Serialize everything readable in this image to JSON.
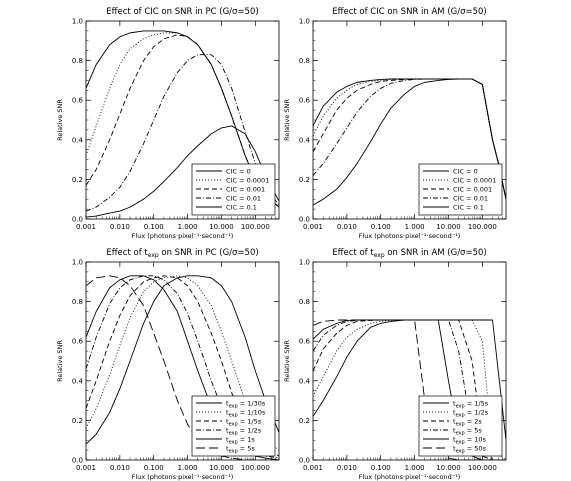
{
  "chart_data": [
    {
      "type": "line",
      "title": "Effect of CIC on SNR in PC (G/σ=50)",
      "xlabel": "Flux (photons·pixel⁻¹·second⁻¹)",
      "ylabel": "Relative SNR",
      "xscale": "log",
      "xlim": [
        0.001,
        500
      ],
      "ylim": [
        0,
        1.0
      ],
      "xticks": [
        "0.001",
        "0.010",
        "0.100",
        "1.000",
        "10.000",
        "100.000"
      ],
      "yticks": [
        "0.0",
        "0.2",
        "0.4",
        "0.6",
        "0.8",
        "1.0"
      ],
      "legend_position": "bottom-right",
      "legend": [
        {
          "label": "CIC = 0",
          "dash": "solid"
        },
        {
          "label": "CIC = 0.0001",
          "dash": "dot"
        },
        {
          "label": "CIC = 0.001",
          "dash": "dash"
        },
        {
          "label": "CIC = 0.01",
          "dash": "dashdot"
        },
        {
          "label": "CIC = 0.1",
          "dash": "solid"
        }
      ],
      "x": [
        0.001,
        0.002,
        0.005,
        0.01,
        0.02,
        0.05,
        0.1,
        0.2,
        0.5,
        1,
        2,
        5,
        10,
        20,
        50,
        100,
        200,
        500
      ],
      "series": [
        {
          "dash": "solid",
          "values": [
            0.66,
            0.78,
            0.88,
            0.92,
            0.94,
            0.95,
            0.95,
            0.95,
            0.94,
            0.92,
            0.88,
            0.78,
            0.66,
            0.52,
            0.32,
            0.2,
            0.12,
            0.06
          ]
        },
        {
          "dash": "dot",
          "values": [
            0.32,
            0.47,
            0.66,
            0.78,
            0.86,
            0.91,
            0.93,
            0.94,
            0.94,
            0.92,
            0.88,
            0.78,
            0.66,
            0.52,
            0.32,
            0.2,
            0.12,
            0.06
          ]
        },
        {
          "dash": "dash",
          "values": [
            0.17,
            0.25,
            0.4,
            0.53,
            0.66,
            0.8,
            0.87,
            0.91,
            0.93,
            0.92,
            0.88,
            0.78,
            0.66,
            0.52,
            0.32,
            0.2,
            0.12,
            0.06
          ]
        },
        {
          "dash": "dashdot",
          "values": [
            0.04,
            0.06,
            0.11,
            0.16,
            0.24,
            0.38,
            0.5,
            0.62,
            0.74,
            0.8,
            0.83,
            0.83,
            0.78,
            0.66,
            0.44,
            0.28,
            0.16,
            0.07
          ]
        },
        {
          "dash": "solid",
          "values": [
            0.01,
            0.015,
            0.03,
            0.04,
            0.06,
            0.1,
            0.14,
            0.19,
            0.26,
            0.32,
            0.37,
            0.43,
            0.46,
            0.47,
            0.43,
            0.34,
            0.22,
            0.09
          ]
        }
      ]
    },
    {
      "type": "line",
      "title": "Effect of CIC on SNR in AM (G/σ=50)",
      "xlabel": "Flux (photons·pixel⁻¹·second⁻¹)",
      "ylabel": "Relative SNR",
      "xscale": "log",
      "xlim": [
        0.001,
        500
      ],
      "ylim": [
        0,
        1.0
      ],
      "xticks": [
        "0.001",
        "0.010",
        "0.100",
        "1.000",
        "10.000",
        "100.000"
      ],
      "yticks": [
        "0.0",
        "0.2",
        "0.4",
        "0.6",
        "0.8",
        "1.0"
      ],
      "legend_position": "bottom-right",
      "legend": [
        {
          "label": "CIC = 0",
          "dash": "solid"
        },
        {
          "label": "CIC = 0.0001",
          "dash": "dot"
        },
        {
          "label": "CIC = 0.001",
          "dash": "dash"
        },
        {
          "label": "CIC = 0.01",
          "dash": "dashdot"
        },
        {
          "label": "CIC = 0.1",
          "dash": "solid"
        }
      ],
      "x": [
        0.001,
        0.002,
        0.005,
        0.01,
        0.02,
        0.05,
        0.1,
        0.2,
        0.5,
        1,
        2,
        5,
        10,
        20,
        50,
        100,
        200,
        300,
        500
      ],
      "series": [
        {
          "dash": "solid",
          "values": [
            0.47,
            0.57,
            0.64,
            0.67,
            0.69,
            0.7,
            0.705,
            0.707,
            0.707,
            0.707,
            0.707,
            0.707,
            0.707,
            0.707,
            0.707,
            0.68,
            0.4,
            0.28,
            0.1
          ]
        },
        {
          "dash": "dot",
          "values": [
            0.42,
            0.52,
            0.61,
            0.65,
            0.68,
            0.695,
            0.7,
            0.705,
            0.707,
            0.707,
            0.707,
            0.707,
            0.707,
            0.707,
            0.707,
            0.68,
            0.4,
            0.28,
            0.1
          ]
        },
        {
          "dash": "dash",
          "values": [
            0.34,
            0.43,
            0.55,
            0.61,
            0.65,
            0.68,
            0.695,
            0.7,
            0.705,
            0.707,
            0.707,
            0.707,
            0.707,
            0.707,
            0.707,
            0.68,
            0.4,
            0.28,
            0.1
          ]
        },
        {
          "dash": "dashdot",
          "values": [
            0.22,
            0.28,
            0.38,
            0.46,
            0.54,
            0.62,
            0.66,
            0.685,
            0.7,
            0.705,
            0.707,
            0.707,
            0.707,
            0.707,
            0.707,
            0.68,
            0.4,
            0.28,
            0.1
          ]
        },
        {
          "dash": "solid",
          "values": [
            0.07,
            0.1,
            0.15,
            0.21,
            0.28,
            0.39,
            0.48,
            0.56,
            0.63,
            0.67,
            0.69,
            0.7,
            0.705,
            0.707,
            0.707,
            0.68,
            0.4,
            0.28,
            0.1
          ]
        }
      ]
    },
    {
      "type": "line",
      "title": "Effect of t_exp on SNR in PC (G/σ=50)",
      "title_parts": {
        "before": "Effect of t",
        "sub": "exp",
        "after": " on SNR in PC (G/σ=50)"
      },
      "xlabel": "Flux (photons·pixel⁻¹·second⁻¹)",
      "ylabel": "Relative SNR",
      "xscale": "log",
      "xlim": [
        0.001,
        500
      ],
      "ylim": [
        0,
        1.0
      ],
      "xticks": [
        "0.001",
        "0.010",
        "0.100",
        "1.000",
        "10.000",
        "100.000"
      ],
      "yticks": [
        "0.0",
        "0.2",
        "0.4",
        "0.6",
        "0.8",
        "1.0"
      ],
      "legend_position": "bottom-right",
      "legend": [
        {
          "label": "= 1/30s",
          "dash": "solid"
        },
        {
          "label": "= 1/10s",
          "dash": "dot"
        },
        {
          "label": "= 1/5s",
          "dash": "dash"
        },
        {
          "label": "= 1/2s",
          "dash": "dashdot"
        },
        {
          "label": "= 1s",
          "dash": "solid"
        },
        {
          "label": "= 5s",
          "dash": "longdash"
        }
      ],
      "legend_prefix": "t",
      "legend_sub": "exp",
      "x": [
        0.001,
        0.002,
        0.005,
        0.01,
        0.02,
        0.05,
        0.1,
        0.2,
        0.5,
        1,
        2,
        5,
        10,
        20,
        50,
        100,
        200,
        500
      ],
      "series": [
        {
          "dash": "solid",
          "values": [
            0.08,
            0.13,
            0.24,
            0.36,
            0.5,
            0.69,
            0.8,
            0.88,
            0.92,
            0.93,
            0.93,
            0.92,
            0.88,
            0.8,
            0.62,
            0.45,
            0.3,
            0.14
          ]
        },
        {
          "dash": "dot",
          "values": [
            0.16,
            0.26,
            0.43,
            0.58,
            0.72,
            0.85,
            0.9,
            0.92,
            0.93,
            0.92,
            0.88,
            0.78,
            0.65,
            0.5,
            0.3,
            0.18,
            0.1,
            0.05
          ]
        },
        {
          "dash": "dash",
          "values": [
            0.26,
            0.4,
            0.6,
            0.73,
            0.83,
            0.9,
            0.92,
            0.93,
            0.92,
            0.88,
            0.8,
            0.64,
            0.5,
            0.34,
            0.18,
            0.1,
            0.06,
            0.02
          ]
        },
        {
          "dash": "dashdot",
          "values": [
            0.46,
            0.62,
            0.79,
            0.87,
            0.91,
            0.93,
            0.93,
            0.91,
            0.84,
            0.74,
            0.6,
            0.4,
            0.27,
            0.16,
            0.07,
            0.04,
            0.02,
            0.01
          ]
        },
        {
          "dash": "solid",
          "values": [
            0.62,
            0.75,
            0.87,
            0.91,
            0.93,
            0.93,
            0.91,
            0.86,
            0.75,
            0.6,
            0.45,
            0.27,
            0.16,
            0.09,
            0.04,
            0.02,
            0.01,
            0.0
          ]
        },
        {
          "dash": "longdash",
          "values": [
            0.88,
            0.92,
            0.93,
            0.92,
            0.88,
            0.78,
            0.64,
            0.5,
            0.3,
            0.18,
            0.1,
            0.04,
            0.02,
            0.01,
            0.0,
            0.0,
            0.0,
            0.0
          ]
        }
      ]
    },
    {
      "type": "line",
      "title": "Effect of t_exp on SNR in AM (G/σ=50)",
      "title_parts": {
        "before": "Effect of t",
        "sub": "exp",
        "after": " on SNR in AM (G/σ=50)"
      },
      "xlabel": "Flux (photons·pixel⁻¹·second⁻¹)",
      "ylabel": "Relative SNR",
      "xscale": "log",
      "xlim": [
        0.001,
        500
      ],
      "ylim": [
        0,
        1.0
      ],
      "xticks": [
        "0.001",
        "0.010",
        "0.100",
        "1.000",
        "10.000",
        "100.000"
      ],
      "yticks": [
        "0.0",
        "0.2",
        "0.4",
        "0.6",
        "0.8",
        "1.0"
      ],
      "legend_position": "bottom-right",
      "legend": [
        {
          "label": "= 1/5s",
          "dash": "solid"
        },
        {
          "label": "= 1/2s",
          "dash": "dot"
        },
        {
          "label": "= 2s",
          "dash": "dash"
        },
        {
          "label": "= 5s",
          "dash": "dashdot"
        },
        {
          "label": "= 10s",
          "dash": "solid"
        },
        {
          "label": "= 50s",
          "dash": "longdash"
        }
      ],
      "legend_prefix": "t",
      "legend_sub": "exp",
      "x": [
        0.001,
        0.002,
        0.005,
        0.01,
        0.02,
        0.05,
        0.1,
        0.2,
        0.5,
        1,
        2,
        5,
        10,
        20,
        50,
        100,
        200,
        500
      ],
      "series": [
        {
          "dash": "solid",
          "values": [
            0.22,
            0.3,
            0.42,
            0.52,
            0.6,
            0.67,
            0.69,
            0.7,
            0.707,
            0.707,
            0.707,
            0.707,
            0.707,
            0.707,
            0.707,
            0.707,
            0.707,
            0.1
          ]
        },
        {
          "dash": "dot",
          "values": [
            0.32,
            0.42,
            0.55,
            0.62,
            0.66,
            0.69,
            0.7,
            0.705,
            0.707,
            0.707,
            0.707,
            0.707,
            0.707,
            0.707,
            0.707,
            0.6,
            0.05,
            0.0
          ]
        },
        {
          "dash": "dash",
          "values": [
            0.45,
            0.56,
            0.64,
            0.68,
            0.7,
            0.705,
            0.707,
            0.707,
            0.707,
            0.707,
            0.707,
            0.707,
            0.707,
            0.707,
            0.5,
            0.1,
            0.0,
            0.0
          ]
        },
        {
          "dash": "dashdot",
          "values": [
            0.55,
            0.63,
            0.68,
            0.7,
            0.705,
            0.707,
            0.707,
            0.707,
            0.707,
            0.707,
            0.707,
            0.707,
            0.707,
            0.55,
            0.14,
            0.02,
            0.0,
            0.0
          ]
        },
        {
          "dash": "solid",
          "values": [
            0.61,
            0.66,
            0.69,
            0.705,
            0.707,
            0.707,
            0.707,
            0.707,
            0.707,
            0.707,
            0.707,
            0.707,
            0.4,
            0.12,
            0.02,
            0.0,
            0.0,
            0.0
          ]
        },
        {
          "dash": "longdash",
          "values": [
            0.68,
            0.7,
            0.707,
            0.707,
            0.707,
            0.707,
            0.707,
            0.707,
            0.707,
            0.707,
            0.3,
            0.06,
            0.01,
            0.0,
            0.0,
            0.0,
            0.0,
            0.0
          ]
        }
      ]
    }
  ]
}
